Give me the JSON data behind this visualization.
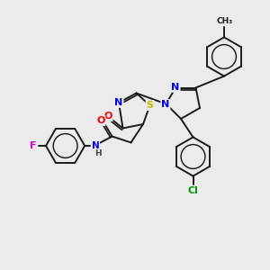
{
  "background_color": "#ebebeb",
  "bond_color": "#1a1a1a",
  "bond_lw": 1.4,
  "atom_colors": {
    "N": "#0000ee",
    "O": "#ee0000",
    "S": "#bbbb00",
    "F": "#dd00dd",
    "Cl": "#009900",
    "C": "#1a1a1a",
    "H": "#444444"
  },
  "font_size": 8.0
}
